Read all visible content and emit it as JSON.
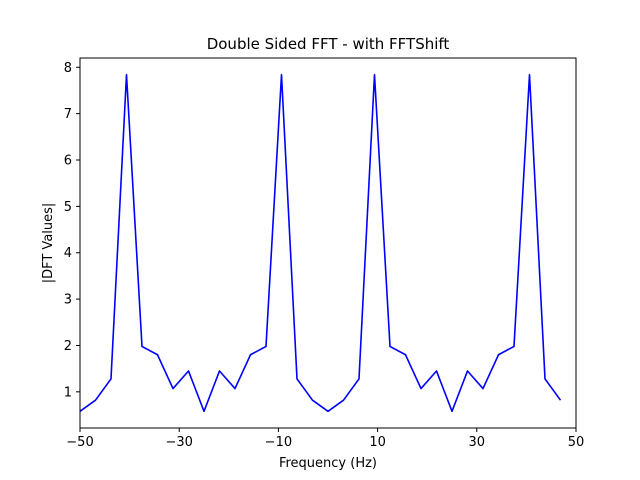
{
  "chart_data": {
    "type": "line",
    "title": "Double Sided FFT - with FFTShift",
    "xlabel": "Frequency (Hz)",
    "ylabel": "|DFT Values|",
    "xlim": [
      -50,
      50
    ],
    "ylim": [
      0.22,
      8.2
    ],
    "xticks": [
      -50,
      -30,
      -10,
      10,
      30,
      50
    ],
    "yticks": [
      1,
      2,
      3,
      4,
      5,
      6,
      7,
      8
    ],
    "grid": false,
    "series": [
      {
        "color": "#0000ff",
        "x": [
          -50,
          -46.875,
          -43.75,
          -40.625,
          -37.5,
          -34.375,
          -31.25,
          -28.125,
          -25,
          -21.875,
          -18.75,
          -15.625,
          -12.5,
          -9.375,
          -6.25,
          -3.125,
          0,
          3.125,
          6.25,
          9.375,
          12.5,
          15.625,
          18.75,
          21.875,
          25,
          28.125,
          31.25,
          34.375,
          37.5,
          40.625,
          43.75,
          46.875
        ],
        "values": [
          0.58,
          0.82,
          1.28,
          7.84,
          1.98,
          1.8,
          1.07,
          1.45,
          0.58,
          1.45,
          1.07,
          1.8,
          1.98,
          7.84,
          1.28,
          0.82,
          0.58,
          0.82,
          1.28,
          7.84,
          1.98,
          1.8,
          1.07,
          1.45,
          0.58,
          1.45,
          1.07,
          1.8,
          1.98,
          7.84,
          1.28,
          0.82
        ]
      }
    ]
  }
}
